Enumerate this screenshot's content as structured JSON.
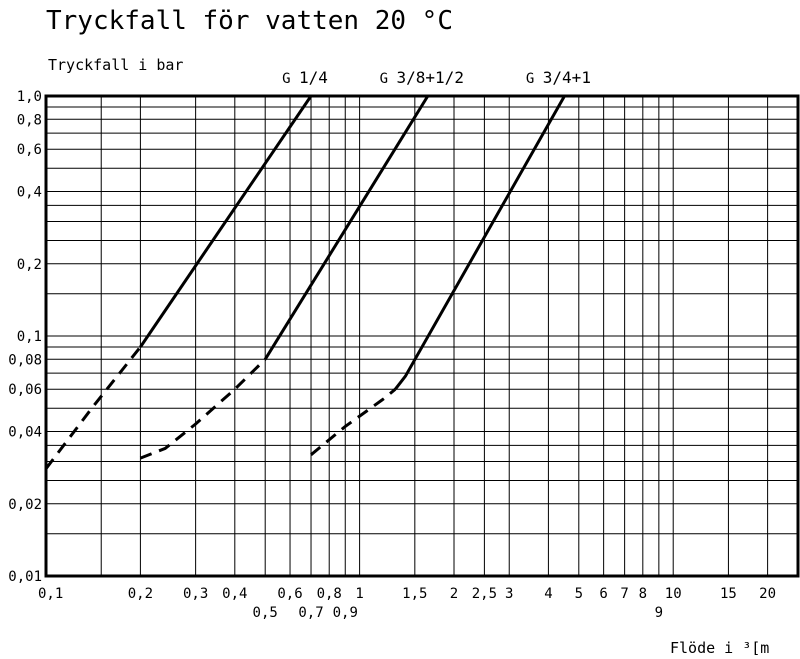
{
  "chart_data": {
    "type": "line",
    "title": "Tryckfall för vatten 20 °C",
    "ylabel": "Tryckfall i bar",
    "xlabel": "Flöde i ³[m",
    "xscale": "log",
    "yscale": "log",
    "xlim": [
      0.1,
      25
    ],
    "ylim": [
      0.01,
      1.0
    ],
    "grid": true,
    "x_tick_labels_top": [
      "0,1",
      "0,2",
      "0,3",
      "0,4",
      "0,6",
      "0,8",
      "1",
      "1,5",
      "2",
      "2,5",
      "3",
      "4",
      "5",
      "6",
      "7",
      "8",
      "10",
      "15",
      "20"
    ],
    "x_tick_labels_bottom": [
      "0,5",
      "0,7",
      "0,9",
      "9"
    ],
    "y_tick_labels": [
      "1,0",
      "0,8",
      "0,6",
      "0,4",
      "0,2",
      "0,1",
      "0,08",
      "0,06",
      "0,04",
      "0,02",
      "0,01"
    ],
    "series_labels": [
      {
        "prefix": "G",
        "text": "1/4",
        "suffix": ""
      },
      {
        "prefix": "G",
        "text": "3/8+1/2",
        "suffix": ""
      },
      {
        "prefix": "G",
        "text": "3/4+1",
        "suffix": ""
      }
    ],
    "series": [
      {
        "dashed": [
          [
            0.1,
            0.028
          ],
          [
            0.14,
            0.05
          ],
          [
            0.2,
            0.09
          ]
        ],
        "solid": [
          [
            0.2,
            0.09
          ],
          [
            0.7,
            1.0
          ]
        ]
      },
      {
        "dashed": [
          [
            0.2,
            0.031
          ],
          [
            0.24,
            0.034
          ],
          [
            0.3,
            0.043
          ],
          [
            0.4,
            0.06
          ],
          [
            0.5,
            0.08
          ]
        ],
        "solid": [
          [
            0.5,
            0.08
          ],
          [
            1.65,
            1.0
          ]
        ]
      },
      {
        "dashed": [
          [
            0.7,
            0.032
          ],
          [
            0.9,
            0.042
          ],
          [
            1.2,
            0.055
          ],
          [
            1.3,
            0.06
          ]
        ],
        "solid": [
          [
            1.3,
            0.06
          ],
          [
            1.4,
            0.068
          ],
          [
            4.5,
            1.0
          ]
        ]
      }
    ]
  }
}
